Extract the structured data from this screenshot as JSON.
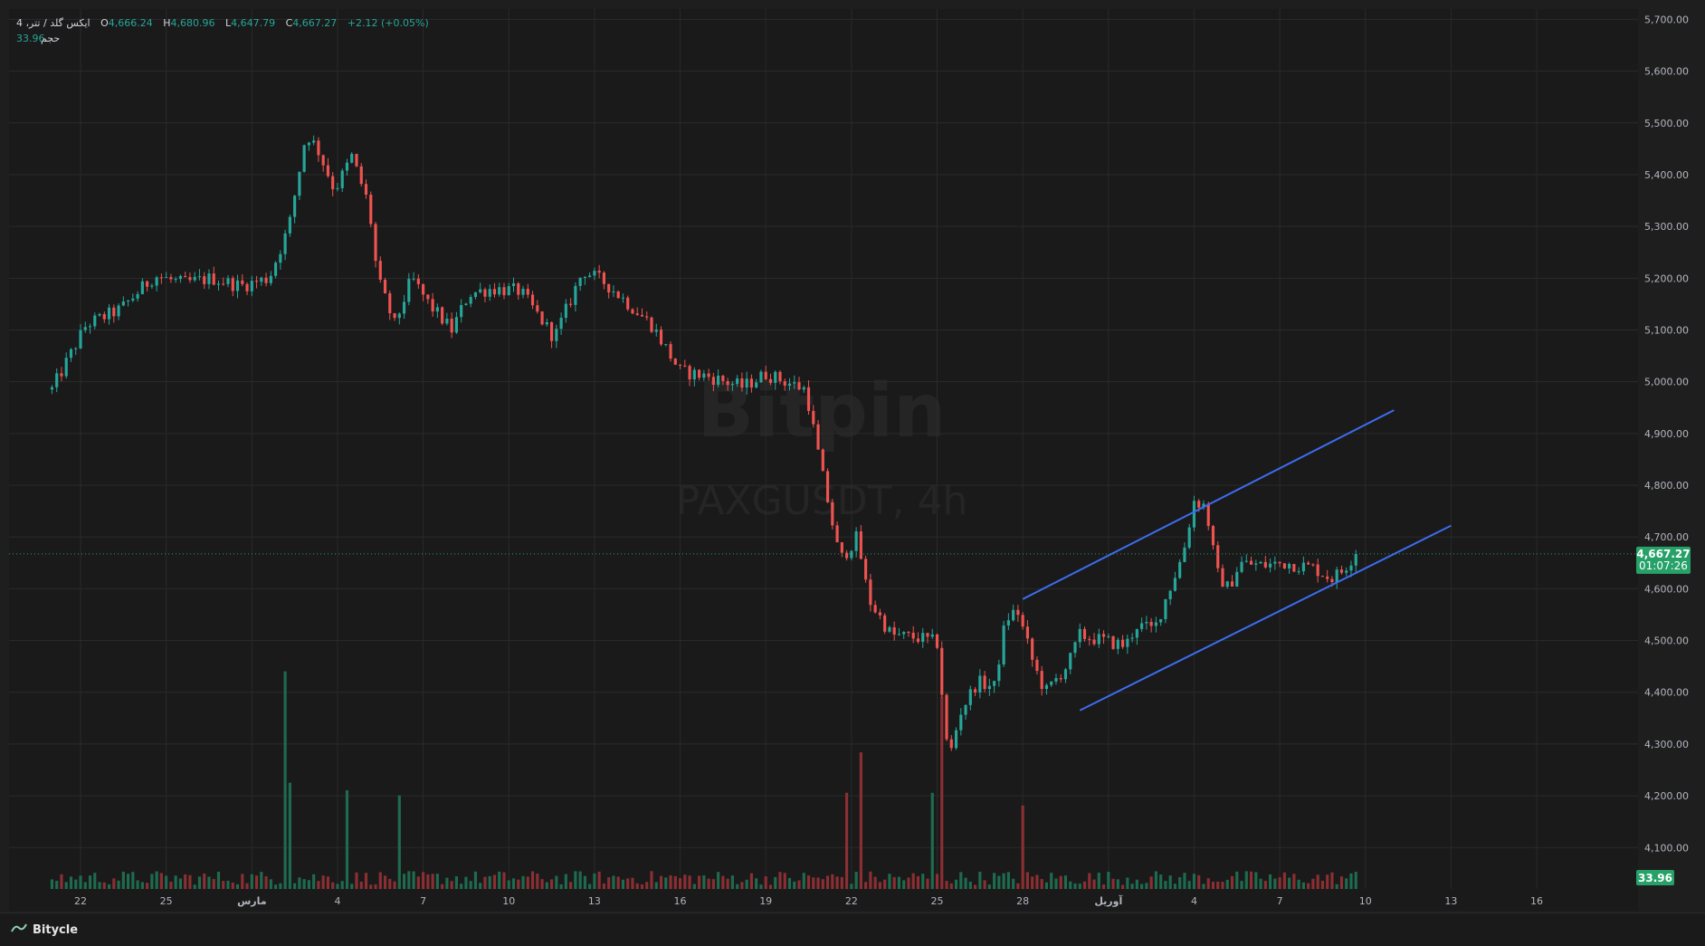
{
  "legend": {
    "symbol": "ایکس گلد / تتر، 4",
    "open_label": "O",
    "open": "4,666.24",
    "high_label": "H",
    "high": "4,680.96",
    "low_label": "L",
    "low": "4,647.79",
    "close_label": "C",
    "close": "4,667.27",
    "change": "+2.12 (+0.05%)",
    "volume_label": "حجم",
    "volume": "33.96"
  },
  "watermark": {
    "title": "Bitpin",
    "subtitle": "PAXGUSDT, 4h"
  },
  "price_badge": {
    "price": "4,667.27",
    "countdown": "01:07:26"
  },
  "volume_badge": "33.96",
  "footer": {
    "brand": "Bitycle"
  },
  "colors": {
    "background": "#1e1e1e",
    "up": "#26a69a",
    "up_vol": "#1e6b4f",
    "down": "#ef5350",
    "down_vol": "#8b2f33",
    "channel": "#3d6cf0",
    "grid": "#2a2a2a",
    "text": "#b2b5be",
    "badge": "#26a269"
  },
  "chart_data": {
    "type": "candlestick",
    "title": "",
    "y_axis": {
      "range": [
        4020,
        5720
      ],
      "ticks": [
        "5,700.00",
        "5,600.00",
        "5,500.00",
        "5,400.00",
        "5,300.00",
        "5,200.00",
        "5,100.00",
        "5,000.00",
        "4,900.00",
        "4,800.00",
        "4,700.00",
        "4,600.00",
        "4,500.00",
        "4,400.00",
        "4,300.00",
        "4,200.00",
        "4,100.00"
      ]
    },
    "x_axis": {
      "ticks": [
        "22",
        "25",
        "مارس",
        "4",
        "7",
        "10",
        "13",
        "16",
        "19",
        "22",
        "25",
        "28",
        "آوریل",
        "4",
        "7",
        "10",
        "13",
        "16"
      ],
      "range_days": [
        0,
        57
      ]
    },
    "ohlc_path": [
      [
        0,
        4985
      ],
      [
        1.2,
        5110
      ],
      [
        2.4,
        5140
      ],
      [
        3.6,
        5205
      ],
      [
        4.6,
        5190
      ],
      [
        5.6,
        5200
      ],
      [
        6.6,
        5185
      ],
      [
        7.6,
        5200
      ],
      [
        8.3,
        5300
      ],
      [
        8.9,
        5480
      ],
      [
        9.3,
        5450
      ],
      [
        9.9,
        5370
      ],
      [
        10.5,
        5435
      ],
      [
        11.1,
        5340
      ],
      [
        11.4,
        5200
      ],
      [
        12.0,
        5110
      ],
      [
        12.6,
        5200
      ],
      [
        13.2,
        5150
      ],
      [
        14.0,
        5100
      ],
      [
        14.6,
        5170
      ],
      [
        15.4,
        5180
      ],
      [
        16.4,
        5175
      ],
      [
        17.0,
        5130
      ],
      [
        17.6,
        5085
      ],
      [
        18.6,
        5215
      ],
      [
        19.4,
        5190
      ],
      [
        20.4,
        5140
      ],
      [
        21.0,
        5110
      ],
      [
        22.0,
        5020
      ],
      [
        23.0,
        5010
      ],
      [
        24.2,
        4990
      ],
      [
        25.0,
        5015
      ],
      [
        26.4,
        4985
      ],
      [
        27.0,
        4815
      ],
      [
        27.6,
        4655
      ],
      [
        28.2,
        4700
      ],
      [
        28.6,
        4580
      ],
      [
        29.4,
        4510
      ],
      [
        30.4,
        4505
      ],
      [
        31.0,
        4495
      ],
      [
        31.4,
        4265
      ],
      [
        31.8,
        4360
      ],
      [
        32.4,
        4420
      ],
      [
        33.0,
        4410
      ],
      [
        33.4,
        4540
      ],
      [
        33.8,
        4560
      ],
      [
        34.4,
        4450
      ],
      [
        34.8,
        4400
      ],
      [
        35.6,
        4455
      ],
      [
        36.0,
        4510
      ],
      [
        36.8,
        4500
      ],
      [
        37.6,
        4490
      ],
      [
        38.0,
        4530
      ],
      [
        38.6,
        4520
      ],
      [
        39.0,
        4580
      ],
      [
        39.6,
        4665
      ],
      [
        40.0,
        4770
      ],
      [
        40.4,
        4760
      ],
      [
        40.8,
        4630
      ],
      [
        41.2,
        4600
      ],
      [
        41.6,
        4650
      ],
      [
        42.4,
        4645
      ],
      [
        43.2,
        4650
      ],
      [
        44.2,
        4640
      ],
      [
        44.8,
        4620
      ],
      [
        45.2,
        4635
      ],
      [
        45.6,
        4665
      ],
      [
        45.8,
        4667.27
      ]
    ],
    "volume_range": [
      0,
      440
    ],
    "volume_spikes": [
      {
        "day": 8.2,
        "value": 430
      },
      {
        "day": 8.3,
        "value": 210
      },
      {
        "day": 10.4,
        "value": 195
      },
      {
        "day": 12.2,
        "value": 185
      },
      {
        "day": 28.4,
        "value": 270
      },
      {
        "day": 27.8,
        "value": 190
      },
      {
        "day": 30.8,
        "value": 190
      },
      {
        "day": 31.2,
        "value": 380
      },
      {
        "day": 34.0,
        "value": 165
      }
    ],
    "channel": {
      "upper": {
        "from": [
          34.0,
          4580
        ],
        "to": [
          47.0,
          4945
        ]
      },
      "lower": {
        "from": [
          36.0,
          4365
        ],
        "to": [
          49.0,
          4722
        ]
      }
    },
    "last_price": 4667.27,
    "last_volume": 33.96
  }
}
